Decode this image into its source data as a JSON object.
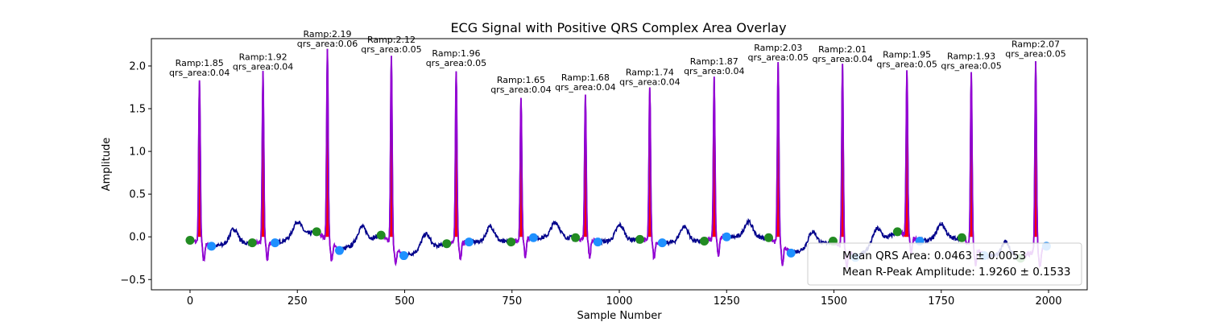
{
  "chart_data": {
    "type": "line",
    "title": "ECG Signal with Positive QRS Complex Area Overlay",
    "xlabel": "Sample Number",
    "ylabel": "Amplitude",
    "xlim": [
      -90,
      2090
    ],
    "ylim": [
      -0.62,
      2.32
    ],
    "x_ticks": [
      0,
      250,
      500,
      750,
      1000,
      1250,
      1500,
      1750,
      2000
    ],
    "y_ticks": [
      -0.5,
      0.0,
      0.5,
      1.0,
      1.5,
      2.0
    ],
    "y_tick_labels": [
      "−0.5",
      "0.0",
      "0.5",
      "1.0",
      "1.5",
      "2.0"
    ],
    "grid": false,
    "legend_position": "lower-right",
    "legend": [
      "Mean QRS Area: 0.0463 ± 0.0053",
      "Mean R-Peak Amplitude: 1.9260 ± 0.1533"
    ],
    "colors": {
      "signal": "#00008b",
      "qrs_segment": "#9400d3",
      "area_fill": "#ff0000",
      "qrs_onset": "#228b22",
      "qrs_offset": "#1e90ff"
    },
    "r_peaks": [
      {
        "x": 22,
        "amp": 1.85,
        "area": 0.04
      },
      {
        "x": 170,
        "amp": 1.92,
        "area": 0.04
      },
      {
        "x": 320,
        "amp": 2.19,
        "area": 0.06
      },
      {
        "x": 469,
        "amp": 2.12,
        "area": 0.05
      },
      {
        "x": 620,
        "amp": 1.96,
        "area": 0.05
      },
      {
        "x": 771,
        "amp": 1.65,
        "area": 0.04
      },
      {
        "x": 921,
        "amp": 1.68,
        "area": 0.04
      },
      {
        "x": 1071,
        "amp": 1.74,
        "area": 0.04
      },
      {
        "x": 1221,
        "amp": 1.87,
        "area": 0.04
      },
      {
        "x": 1370,
        "amp": 2.03,
        "area": 0.05
      },
      {
        "x": 1520,
        "amp": 2.01,
        "area": 0.04
      },
      {
        "x": 1670,
        "amp": 1.95,
        "area": 0.05
      },
      {
        "x": 1820,
        "amp": 1.93,
        "area": 0.05
      },
      {
        "x": 1970,
        "amp": 2.07,
        "area": 0.05
      }
    ],
    "annotation_labels": [
      {
        "ramp": "Ramp:1.85",
        "qrs": "qrs_area:0.04"
      },
      {
        "ramp": "Ramp:1.92",
        "qrs": "qrs_area:0.04"
      },
      {
        "ramp": "Ramp:2.19",
        "qrs": "qrs_area:0.06"
      },
      {
        "ramp": "Ramp:2.12",
        "qrs": "qrs_area:0.05"
      },
      {
        "ramp": "Ramp:1.96",
        "qrs": "qrs_area:0.05"
      },
      {
        "ramp": "Ramp:1.65",
        "qrs": "qrs_area:0.04"
      },
      {
        "ramp": "Ramp:1.68",
        "qrs": "qrs_area:0.04"
      },
      {
        "ramp": "Ramp:1.74",
        "qrs": "qrs_area:0.04"
      },
      {
        "ramp": "Ramp:1.87",
        "qrs": "qrs_area:0.04"
      },
      {
        "ramp": "Ramp:2.03",
        "qrs": "qrs_area:0.05"
      },
      {
        "ramp": "Ramp:2.01",
        "qrs": "qrs_area:0.04"
      },
      {
        "ramp": "Ramp:1.95",
        "qrs": "qrs_area:0.05"
      },
      {
        "ramp": "Ramp:1.93",
        "qrs": "qrs_area:0.05"
      },
      {
        "ramp": "Ramp:2.07",
        "qrs": "qrs_area:0.05"
      }
    ],
    "qrs_onsets": [
      {
        "x": 0,
        "y": -0.04
      },
      {
        "x": 145,
        "y": -0.07
      },
      {
        "x": 295,
        "y": 0.06
      },
      {
        "x": 445,
        "y": 0.02
      },
      {
        "x": 598,
        "y": -0.08
      },
      {
        "x": 748,
        "y": -0.06
      },
      {
        "x": 898,
        "y": -0.01
      },
      {
        "x": 1048,
        "y": -0.03
      },
      {
        "x": 1198,
        "y": -0.05
      },
      {
        "x": 1348,
        "y": -0.01
      },
      {
        "x": 1498,
        "y": -0.05
      },
      {
        "x": 1648,
        "y": 0.06
      },
      {
        "x": 1798,
        "y": -0.01
      },
      {
        "x": 1935,
        "y": -0.25
      }
    ],
    "qrs_offsets": [
      {
        "x": 50,
        "y": -0.11
      },
      {
        "x": 198,
        "y": -0.07
      },
      {
        "x": 348,
        "y": -0.16
      },
      {
        "x": 498,
        "y": -0.22
      },
      {
        "x": 650,
        "y": -0.06
      },
      {
        "x": 800,
        "y": -0.01
      },
      {
        "x": 950,
        "y": -0.06
      },
      {
        "x": 1100,
        "y": -0.07
      },
      {
        "x": 1250,
        "y": 0.0
      },
      {
        "x": 1400,
        "y": -0.19
      },
      {
        "x": 1550,
        "y": -0.24
      },
      {
        "x": 1700,
        "y": -0.05
      },
      {
        "x": 1850,
        "y": -0.22
      },
      {
        "x": 1995,
        "y": -0.11
      }
    ]
  }
}
